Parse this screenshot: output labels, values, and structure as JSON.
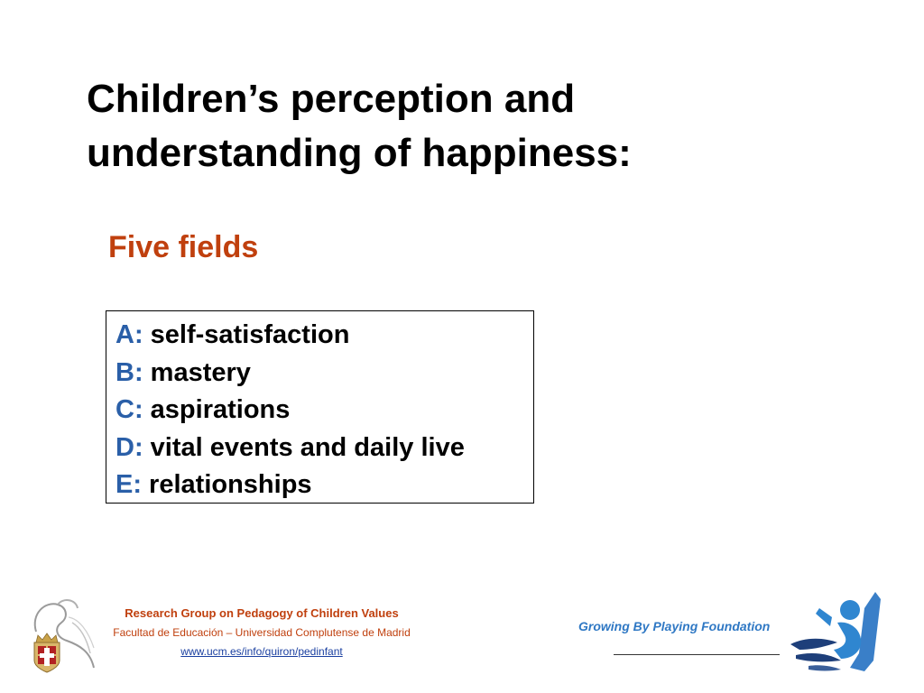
{
  "slide": {
    "title": "Children’s perception and understanding of happiness:",
    "subtitle": "Five fields",
    "fields": [
      {
        "letter": "A:",
        "text": " self-satisfaction"
      },
      {
        "letter": "B:",
        "text": " mastery"
      },
      {
        "letter": "C:",
        "text": " aspirations"
      },
      {
        "letter": "D:",
        "text": " vital events and daily live"
      },
      {
        "letter": "E:",
        "text": " relationships"
      }
    ]
  },
  "footer": {
    "group_name": "Research Group on Pedagogy of Children Values",
    "faculty": "Facultad de Educación – Universidad Complutense de Madrid",
    "url": "www.ucm.es/info/quiron/pedinfant",
    "foundation_name": "Growing By Playing Foundation"
  },
  "colors": {
    "accent_orange": "#c0400e",
    "field_letter_blue": "#2a5fa8",
    "link_blue": "#1a3fa0",
    "foundation_blue": "#2f78c4"
  },
  "icons": {
    "university_seal": "complutense-seal-icon",
    "foundation_logo": "jumping-figure-icon"
  }
}
